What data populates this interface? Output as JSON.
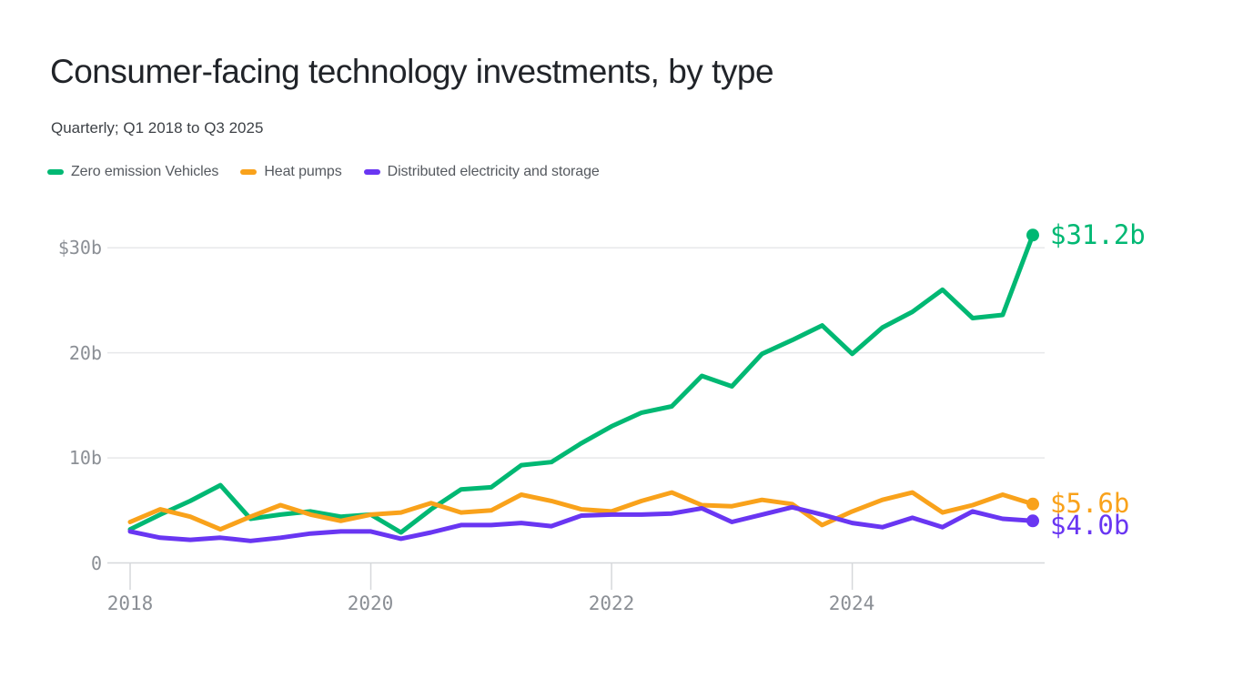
{
  "header": {
    "title": "Consumer-facing technology investments, by type",
    "subtitle": "Quarterly; Q1 2018 to Q3 2025"
  },
  "legend": [
    {
      "label": "Zero emission Vehicles",
      "color": "#00b873"
    },
    {
      "label": "Heat pumps",
      "color": "#f9a21b"
    },
    {
      "label": "Distributed electricity and storage",
      "color": "#6936f2"
    }
  ],
  "chart_data": {
    "type": "line",
    "unit": "billions of dollars, quarterly",
    "x": [
      "Q1 2018",
      "Q2 2018",
      "Q3 2018",
      "Q4 2018",
      "Q1 2019",
      "Q2 2019",
      "Q3 2019",
      "Q4 2019",
      "Q1 2020",
      "Q2 2020",
      "Q3 2020",
      "Q4 2020",
      "Q1 2021",
      "Q2 2021",
      "Q3 2021",
      "Q4 2021",
      "Q1 2022",
      "Q2 2022",
      "Q3 2022",
      "Q4 2022",
      "Q1 2023",
      "Q2 2023",
      "Q3 2023",
      "Q4 2023",
      "Q1 2024",
      "Q2 2024",
      "Q3 2024",
      "Q4 2024",
      "Q1 2025",
      "Q2 2025",
      "Q3 2025"
    ],
    "x_tick_labels": [
      "2018",
      "2020",
      "2022",
      "2024"
    ],
    "y_tick_labels": [
      "$30b",
      "20b",
      "10b",
      "0"
    ],
    "ylim": [
      0,
      32
    ],
    "grid": "horizontal",
    "legend_position": "top",
    "series": [
      {
        "id": "zero-emission-vehicles",
        "name": "Zero emission Vehicles",
        "color": "#00b873",
        "end_label": "$31.2b",
        "end_value": 31.2,
        "values": [
          3.2,
          4.6,
          5.9,
          7.4,
          4.2,
          4.6,
          4.9,
          4.4,
          4.6,
          2.9,
          5.1,
          7.0,
          7.2,
          9.3,
          9.6,
          11.4,
          13.0,
          14.3,
          14.9,
          17.8,
          16.8,
          19.9,
          21.2,
          22.6,
          19.9,
          22.4,
          23.9,
          26.0,
          23.3,
          23.6,
          31.2
        ]
      },
      {
        "id": "heat-pumps",
        "name": "Heat pumps",
        "color": "#f9a21b",
        "end_label": "$5.6b",
        "end_value": 5.6,
        "values": [
          3.9,
          5.1,
          4.4,
          3.2,
          4.4,
          5.5,
          4.6,
          4.0,
          4.6,
          4.8,
          5.7,
          4.8,
          5.0,
          6.5,
          5.9,
          5.1,
          4.9,
          5.9,
          6.7,
          5.5,
          5.4,
          6.0,
          5.6,
          3.6,
          4.9,
          6.0,
          6.7,
          4.8,
          5.5,
          6.5,
          5.6
        ]
      },
      {
        "id": "distributed-electricity-and-storage",
        "name": "Distributed electricity and storage",
        "color": "#6936f2",
        "end_label": "$4.0b",
        "end_value": 4.0,
        "values": [
          3.0,
          2.4,
          2.2,
          2.4,
          2.1,
          2.4,
          2.8,
          3.0,
          3.0,
          2.3,
          2.9,
          3.6,
          3.6,
          3.8,
          3.5,
          4.5,
          4.6,
          4.6,
          4.7,
          5.2,
          3.9,
          4.6,
          5.3,
          4.6,
          3.8,
          3.4,
          4.3,
          3.4,
          4.9,
          4.2,
          4.0
        ]
      }
    ]
  }
}
